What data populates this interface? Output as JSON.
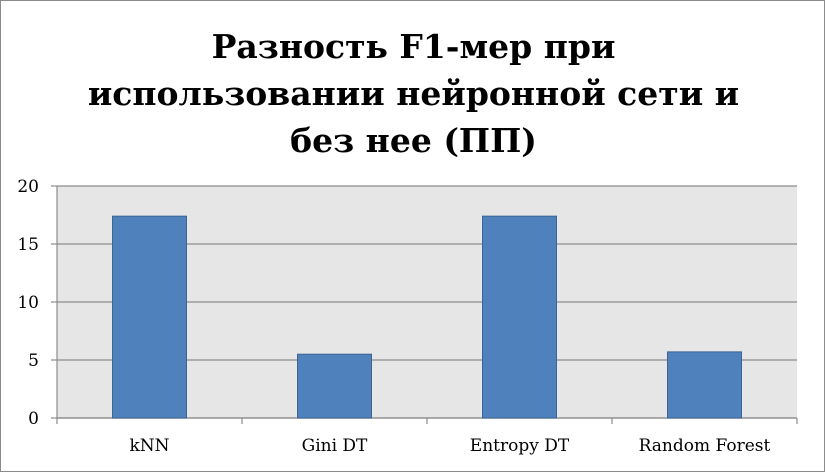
{
  "chart_data": {
    "type": "bar",
    "title": "Разность F1-мер при использовании нейронной сети и без нее (ПП)",
    "title_lines": [
      "Разность F1-мер при",
      "использовании нейронной сети и",
      "без нее (ПП)"
    ],
    "categories": [
      "kNN",
      "Gini DT",
      "Entropy DT",
      "Random Forest"
    ],
    "series": [
      {
        "values": [
          17.4,
          5.5,
          17.4,
          5.7
        ]
      }
    ],
    "xlabel": "",
    "ylabel": "",
    "ylim": [
      0,
      20
    ],
    "yticks": [
      0,
      5,
      10,
      15,
      20
    ],
    "grid": true,
    "legend": "none",
    "colors": {
      "bar_fill": "#4f81bd",
      "bar_stroke": "#3a6595",
      "plot_background": "#e6e6e6",
      "gridline": "#8c8c8c",
      "axis": "#8c8c8c"
    }
  }
}
